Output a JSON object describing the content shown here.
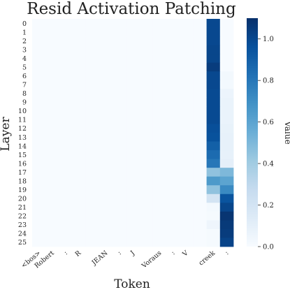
{
  "chart_data": {
    "type": "heatmap",
    "title": "Resid Activation Patching",
    "xlabel": "Token",
    "ylabel": "Layer",
    "x_categories": [
      "<bos>",
      "Robert",
      ":",
      "R",
      "",
      "JEAN",
      ":",
      "J",
      "",
      "Voraus",
      ":",
      "V",
      "",
      "creek",
      ":"
    ],
    "y_categories": [
      "0",
      "1",
      "2",
      "3",
      "4",
      "5",
      "6",
      "7",
      "8",
      "9",
      "10",
      "11",
      "12",
      "13",
      "14",
      "15",
      "16",
      "17",
      "18",
      "19",
      "20",
      "21",
      "22",
      "23",
      "24",
      "25"
    ],
    "values": [
      [
        0,
        0,
        0,
        0,
        0,
        0,
        0,
        0,
        0,
        0,
        0,
        0,
        0,
        1.0,
        0.0
      ],
      [
        0,
        0,
        0,
        0,
        0,
        0,
        0,
        0,
        0,
        0,
        0,
        0,
        0,
        1.0,
        0.0
      ],
      [
        0,
        0,
        0,
        0,
        0,
        0,
        0,
        0,
        0,
        0,
        0,
        0,
        0,
        1.0,
        0.0
      ],
      [
        0,
        0,
        0,
        0,
        0,
        0,
        0,
        0,
        0,
        0,
        0,
        0,
        0,
        1.01,
        0.0
      ],
      [
        0,
        0,
        0,
        0,
        0,
        0,
        0,
        0,
        0,
        0,
        0,
        0,
        0,
        1.01,
        0.0
      ],
      [
        0,
        0,
        0,
        0,
        0,
        0,
        0,
        0,
        0,
        0,
        0,
        0,
        0,
        1.05,
        0.0
      ],
      [
        0,
        0,
        0,
        0,
        0,
        0,
        0,
        0,
        0,
        0,
        0,
        0,
        0,
        1.0,
        0.03
      ],
      [
        0,
        0,
        0,
        0,
        0,
        0,
        0,
        0,
        0,
        0,
        0,
        0,
        0,
        1.0,
        0.02
      ],
      [
        0,
        0,
        0,
        0,
        0,
        0,
        0,
        0,
        0,
        0,
        0,
        0,
        0,
        0.99,
        0.06
      ],
      [
        0,
        0,
        0,
        0,
        0,
        0,
        0,
        0,
        0,
        0,
        0,
        0,
        0,
        0.99,
        0.07
      ],
      [
        0,
        0,
        0,
        0,
        0,
        0,
        0,
        0,
        0,
        0,
        0,
        0,
        0,
        0.99,
        0.07
      ],
      [
        0,
        0,
        0,
        0,
        0,
        0,
        0,
        0,
        0,
        0,
        0,
        0,
        0,
        0.99,
        0.07
      ],
      [
        0,
        0,
        0,
        0,
        0,
        0,
        0,
        0,
        0,
        0,
        0,
        0,
        0,
        0.97,
        0.08
      ],
      [
        0,
        0,
        0,
        0,
        0,
        0,
        0,
        0,
        0,
        0,
        0,
        0,
        0,
        0.96,
        0.09
      ],
      [
        0,
        0,
        0,
        0,
        0,
        0,
        0,
        0,
        0,
        0,
        0,
        0,
        0,
        0.9,
        0.09
      ],
      [
        0,
        0,
        0,
        0,
        0,
        0,
        0,
        0,
        0,
        0,
        0,
        0,
        0,
        0.85,
        0.09
      ],
      [
        0,
        0,
        0,
        0,
        0,
        0,
        0,
        0,
        0,
        0,
        0,
        0,
        0,
        0.8,
        0.1
      ],
      [
        0,
        0,
        0,
        0,
        0,
        0,
        0,
        0,
        0,
        0,
        0,
        0,
        0,
        0.45,
        0.5
      ],
      [
        0,
        0,
        0,
        0,
        0,
        0,
        0,
        0,
        0,
        0,
        0,
        0,
        0,
        0.65,
        0.6
      ],
      [
        0,
        0,
        0,
        0,
        0,
        0,
        0,
        0,
        0,
        0,
        0,
        0,
        0,
        0.45,
        0.72
      ],
      [
        0,
        0,
        0,
        0,
        0,
        0,
        0,
        0,
        0,
        0,
        0,
        0,
        0,
        0.2,
        0.95
      ],
      [
        0,
        0,
        0,
        0,
        0,
        0,
        0,
        0,
        0,
        0,
        0,
        0,
        0,
        0.02,
        1.01
      ],
      [
        0,
        0,
        0,
        0,
        0,
        0,
        0,
        0,
        0,
        0,
        0,
        0,
        0,
        0.01,
        1.08
      ],
      [
        0,
        0,
        0,
        0,
        0,
        0,
        0,
        0,
        0,
        0,
        0,
        0,
        0,
        0.05,
        1.06
      ],
      [
        0,
        0,
        0,
        0,
        0,
        0,
        0,
        0,
        0,
        0,
        0,
        0,
        0,
        0.01,
        1.05
      ],
      [
        0,
        0,
        0,
        0,
        0,
        0,
        0,
        0,
        0,
        0,
        0,
        0,
        0,
        0.01,
        1.02
      ]
    ],
    "colorbar": {
      "label": "Value",
      "range": [
        0,
        1.1
      ],
      "ticks": [
        "0.0",
        "0.2",
        "0.4",
        "0.6",
        "0.8",
        "1.0"
      ],
      "colormap": "Blues",
      "colors": [
        "#f7fbff",
        "#deebf7",
        "#c6dbef",
        "#9ecae1",
        "#6baed6",
        "#4292c6",
        "#2171b5",
        "#08519c",
        "#08306b"
      ]
    }
  }
}
